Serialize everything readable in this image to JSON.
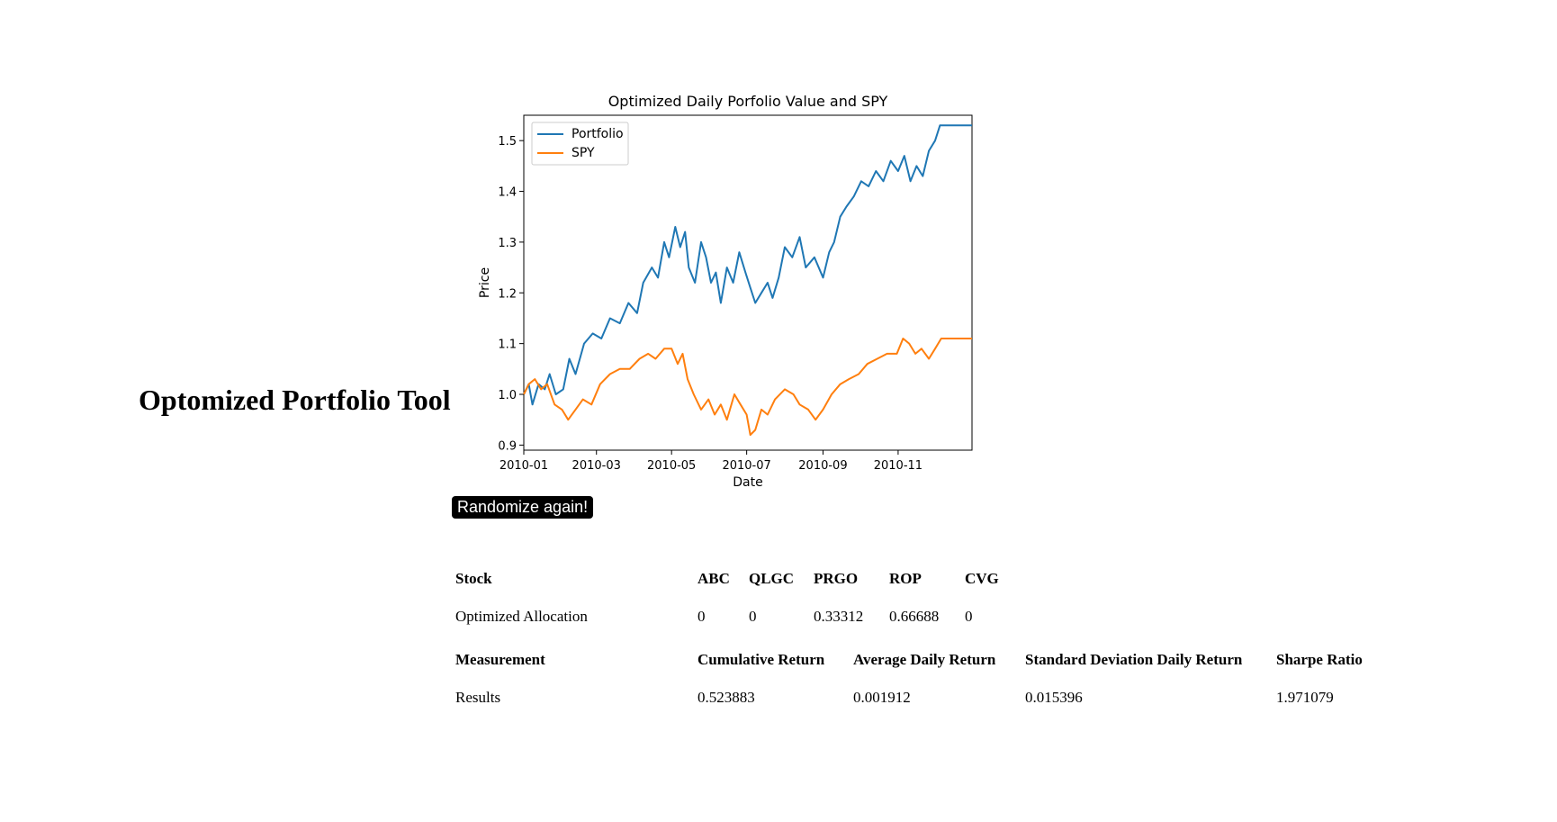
{
  "page": {
    "title": "Optomized Portfolio Tool"
  },
  "button": {
    "label": "Randomize again!"
  },
  "allocation": {
    "header_label": "Stock",
    "stocks": [
      "ABC",
      "QLGC",
      "PRGO",
      "ROP",
      "CVG"
    ],
    "row_label": "Optimized Allocation",
    "values": [
      "0",
      "0",
      "0.33312",
      "0.66688",
      "0"
    ]
  },
  "metrics": {
    "header_label": "Measurement",
    "names": [
      "Cumulative Return",
      "Average Daily Return",
      "Standard Deviation Daily Return",
      "Sharpe Ratio"
    ],
    "row_label": "Results",
    "values": [
      "0.523883",
      "0.001912",
      "0.015396",
      "1.971079"
    ]
  },
  "chart_data": {
    "type": "line",
    "title": "Optimized Daily Porfolio Value and SPY",
    "xlabel": "Date",
    "ylabel": "Price",
    "xlim": [
      "2010-01-01",
      "2010-12-31"
    ],
    "ylim": [
      0.89,
      1.55
    ],
    "x_ticks": [
      "2010-01",
      "2010-03",
      "2010-05",
      "2010-07",
      "2010-09",
      "2010-11"
    ],
    "y_ticks": [
      0.9,
      1.0,
      1.1,
      1.2,
      1.3,
      1.4,
      1.5
    ],
    "legend": "top-left",
    "grid": false,
    "series": [
      {
        "name": "Portfolio",
        "color": "#1f77b4",
        "points": [
          [
            "2010-01-01",
            1.0
          ],
          [
            "2010-01-05",
            1.02
          ],
          [
            "2010-01-08",
            0.98
          ],
          [
            "2010-01-13",
            1.02
          ],
          [
            "2010-01-18",
            1.01
          ],
          [
            "2010-01-22",
            1.04
          ],
          [
            "2010-01-27",
            1.0
          ],
          [
            "2010-02-02",
            1.01
          ],
          [
            "2010-02-07",
            1.07
          ],
          [
            "2010-02-12",
            1.04
          ],
          [
            "2010-02-19",
            1.1
          ],
          [
            "2010-02-26",
            1.12
          ],
          [
            "2010-03-05",
            1.11
          ],
          [
            "2010-03-12",
            1.15
          ],
          [
            "2010-03-20",
            1.14
          ],
          [
            "2010-03-27",
            1.18
          ],
          [
            "2010-04-03",
            1.16
          ],
          [
            "2010-04-08",
            1.22
          ],
          [
            "2010-04-15",
            1.25
          ],
          [
            "2010-04-20",
            1.23
          ],
          [
            "2010-04-25",
            1.3
          ],
          [
            "2010-04-29",
            1.27
          ],
          [
            "2010-05-04",
            1.33
          ],
          [
            "2010-05-08",
            1.29
          ],
          [
            "2010-05-12",
            1.32
          ],
          [
            "2010-05-15",
            1.25
          ],
          [
            "2010-05-20",
            1.22
          ],
          [
            "2010-05-25",
            1.3
          ],
          [
            "2010-05-29",
            1.27
          ],
          [
            "2010-06-02",
            1.22
          ],
          [
            "2010-06-06",
            1.24
          ],
          [
            "2010-06-10",
            1.18
          ],
          [
            "2010-06-15",
            1.25
          ],
          [
            "2010-06-20",
            1.22
          ],
          [
            "2010-06-25",
            1.28
          ],
          [
            "2010-06-30",
            1.24
          ],
          [
            "2010-07-04",
            1.21
          ],
          [
            "2010-07-08",
            1.18
          ],
          [
            "2010-07-13",
            1.2
          ],
          [
            "2010-07-18",
            1.22
          ],
          [
            "2010-07-22",
            1.19
          ],
          [
            "2010-07-27",
            1.23
          ],
          [
            "2010-08-01",
            1.29
          ],
          [
            "2010-08-07",
            1.27
          ],
          [
            "2010-08-13",
            1.31
          ],
          [
            "2010-08-18",
            1.25
          ],
          [
            "2010-08-25",
            1.27
          ],
          [
            "2010-09-01",
            1.23
          ],
          [
            "2010-09-06",
            1.28
          ],
          [
            "2010-09-10",
            1.3
          ],
          [
            "2010-09-15",
            1.35
          ],
          [
            "2010-09-20",
            1.37
          ],
          [
            "2010-09-26",
            1.39
          ],
          [
            "2010-10-02",
            1.42
          ],
          [
            "2010-10-08",
            1.41
          ],
          [
            "2010-10-14",
            1.44
          ],
          [
            "2010-10-20",
            1.42
          ],
          [
            "2010-10-26",
            1.46
          ],
          [
            "2010-11-01",
            1.44
          ],
          [
            "2010-11-06",
            1.47
          ],
          [
            "2010-11-11",
            1.42
          ],
          [
            "2010-11-16",
            1.45
          ],
          [
            "2010-11-21",
            1.43
          ],
          [
            "2010-11-26",
            1.48
          ],
          [
            "2010-12-01",
            1.5
          ],
          [
            "2010-12-05",
            1.53
          ],
          [
            "2010-12-31",
            1.53
          ]
        ]
      },
      {
        "name": "SPY",
        "color": "#ff7f0e",
        "points": [
          [
            "2010-01-01",
            1.0
          ],
          [
            "2010-01-05",
            1.02
          ],
          [
            "2010-01-10",
            1.03
          ],
          [
            "2010-01-15",
            1.01
          ],
          [
            "2010-01-20",
            1.02
          ],
          [
            "2010-01-26",
            0.98
          ],
          [
            "2010-02-01",
            0.97
          ],
          [
            "2010-02-06",
            0.95
          ],
          [
            "2010-02-12",
            0.97
          ],
          [
            "2010-02-18",
            0.99
          ],
          [
            "2010-02-25",
            0.98
          ],
          [
            "2010-03-04",
            1.02
          ],
          [
            "2010-03-12",
            1.04
          ],
          [
            "2010-03-20",
            1.05
          ],
          [
            "2010-03-28",
            1.05
          ],
          [
            "2010-04-05",
            1.07
          ],
          [
            "2010-04-12",
            1.08
          ],
          [
            "2010-04-18",
            1.07
          ],
          [
            "2010-04-25",
            1.09
          ],
          [
            "2010-05-01",
            1.09
          ],
          [
            "2010-05-06",
            1.06
          ],
          [
            "2010-05-10",
            1.08
          ],
          [
            "2010-05-14",
            1.03
          ],
          [
            "2010-05-19",
            1.0
          ],
          [
            "2010-05-25",
            0.97
          ],
          [
            "2010-05-31",
            0.99
          ],
          [
            "2010-06-05",
            0.96
          ],
          [
            "2010-06-10",
            0.98
          ],
          [
            "2010-06-15",
            0.95
          ],
          [
            "2010-06-21",
            1.0
          ],
          [
            "2010-06-26",
            0.98
          ],
          [
            "2010-07-01",
            0.96
          ],
          [
            "2010-07-04",
            0.92
          ],
          [
            "2010-07-08",
            0.93
          ],
          [
            "2010-07-13",
            0.97
          ],
          [
            "2010-07-18",
            0.96
          ],
          [
            "2010-07-24",
            0.99
          ],
          [
            "2010-08-01",
            1.01
          ],
          [
            "2010-08-08",
            1.0
          ],
          [
            "2010-08-13",
            0.98
          ],
          [
            "2010-08-20",
            0.97
          ],
          [
            "2010-08-26",
            0.95
          ],
          [
            "2010-09-01",
            0.97
          ],
          [
            "2010-09-08",
            1.0
          ],
          [
            "2010-09-15",
            1.02
          ],
          [
            "2010-09-22",
            1.03
          ],
          [
            "2010-09-30",
            1.04
          ],
          [
            "2010-10-07",
            1.06
          ],
          [
            "2010-10-15",
            1.07
          ],
          [
            "2010-10-23",
            1.08
          ],
          [
            "2010-10-31",
            1.08
          ],
          [
            "2010-11-05",
            1.11
          ],
          [
            "2010-11-10",
            1.1
          ],
          [
            "2010-11-15",
            1.08
          ],
          [
            "2010-11-20",
            1.09
          ],
          [
            "2010-11-26",
            1.07
          ],
          [
            "2010-12-01",
            1.09
          ],
          [
            "2010-12-06",
            1.11
          ],
          [
            "2010-12-31",
            1.11
          ]
        ]
      }
    ]
  }
}
